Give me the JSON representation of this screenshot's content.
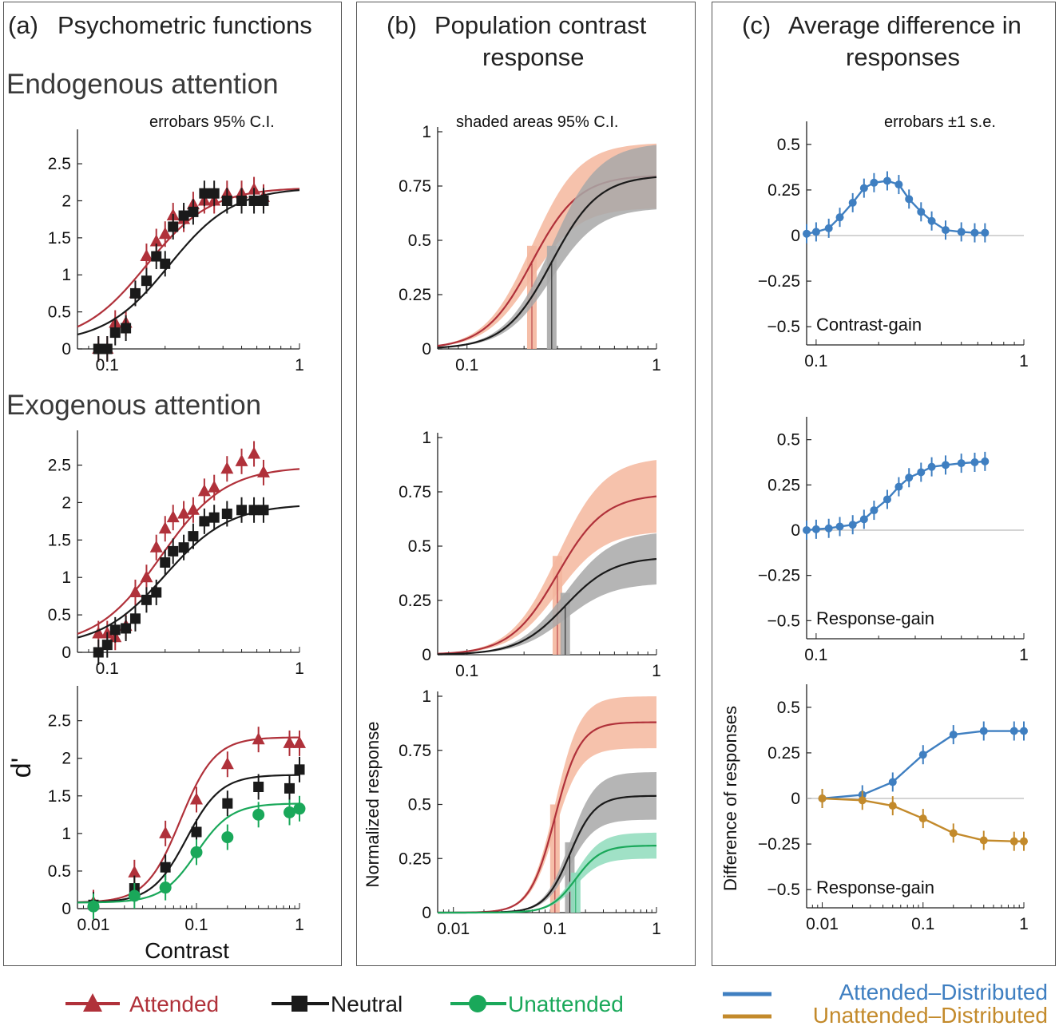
{
  "panels": {
    "a": {
      "label": "(a)",
      "title": "Psychometric functions",
      "endo_heading": "Endogenous attention",
      "exo_heading": "Exogenous attention",
      "note": "errobars 95% C.I."
    },
    "b": {
      "label": "(b)",
      "title_line1": "Population contrast",
      "title_line2": "response",
      "note": "shaded areas 95% C.I."
    },
    "c": {
      "label": "(c)",
      "title_line1": "Average difference in",
      "title_line2": "responses",
      "note": "errobars ±1 s.e."
    }
  },
  "legend": {
    "attended": "Attended",
    "neutral": "Neutral",
    "unattended": "Unattended",
    "att_dist": "Attended–Distributed",
    "unatt_dist": "Unattended–Distributed"
  },
  "colors": {
    "attended": "#b0313a",
    "neutral": "#1a1a1a",
    "unattended": "#1aa85a",
    "att_fill": "#f4b79e",
    "neu_fill": "#a8a8a8",
    "unatt_fill": "#8fdcbc",
    "att_dist": "#3f7fc1",
    "unatt_dist": "#c38a2b"
  },
  "chart_data": [
    {
      "id": "a1",
      "type": "line",
      "xscale": "log",
      "xlim": [
        0.07,
        1
      ],
      "ylim": [
        0,
        2.5
      ],
      "xticks": [
        "0.1",
        "1"
      ],
      "yticks": [
        "0",
        "0.5",
        "1",
        "1.5",
        "2",
        "2.5"
      ],
      "series": [
        {
          "name": "Attended",
          "marker": "triangle",
          "x": [
            0.09,
            0.1,
            0.11,
            0.125,
            0.14,
            0.16,
            0.18,
            0.2,
            0.22,
            0.25,
            0.28,
            0.32,
            0.36,
            0.42,
            0.5,
            0.58,
            0.65
          ],
          "y": [
            0,
            0,
            0.35,
            0.35,
            0.75,
            1.25,
            1.45,
            1.55,
            1.8,
            1.75,
            1.95,
            2.0,
            2.0,
            2.1,
            2.1,
            2.15,
            2.05
          ],
          "fit_mid": 0.16,
          "fit_max": 2.1
        },
        {
          "name": "Neutral",
          "marker": "square",
          "x": [
            0.09,
            0.1,
            0.11,
            0.125,
            0.14,
            0.16,
            0.18,
            0.2,
            0.22,
            0.25,
            0.28,
            0.32,
            0.36,
            0.42,
            0.5,
            0.58,
            0.65
          ],
          "y": [
            0,
            0,
            0.22,
            0.28,
            0.75,
            0.92,
            1.25,
            1.15,
            1.65,
            1.8,
            1.85,
            2.1,
            2.1,
            2.0,
            2.0,
            2.0,
            2.0
          ],
          "fit_mid": 0.21,
          "fit_max": 2.1
        }
      ]
    },
    {
      "id": "a2",
      "type": "line",
      "xscale": "log",
      "xlim": [
        0.07,
        1
      ],
      "ylim": [
        0,
        2.5
      ],
      "xticks": [
        "0.1",
        "1"
      ],
      "yticks": [
        "0",
        "0.5",
        "1",
        "1.5",
        "2",
        "2.5"
      ],
      "series": [
        {
          "name": "Attended",
          "marker": "triangle",
          "x": [
            0.09,
            0.1,
            0.11,
            0.125,
            0.14,
            0.16,
            0.18,
            0.2,
            0.22,
            0.25,
            0.28,
            0.32,
            0.36,
            0.42,
            0.5,
            0.58,
            0.65
          ],
          "y": [
            0.25,
            0.25,
            0.2,
            0.35,
            0.8,
            1.0,
            1.4,
            1.65,
            1.8,
            1.85,
            1.9,
            2.15,
            2.2,
            2.45,
            2.55,
            2.65,
            2.4
          ],
          "fit_mid": 0.19,
          "fit_max": 2.4
        },
        {
          "name": "Neutral",
          "marker": "square",
          "x": [
            0.09,
            0.1,
            0.11,
            0.125,
            0.14,
            0.16,
            0.18,
            0.2,
            0.22,
            0.25,
            0.28,
            0.32,
            0.36,
            0.42,
            0.5,
            0.58,
            0.65
          ],
          "y": [
            0,
            0.1,
            0.3,
            0.32,
            0.45,
            0.7,
            0.8,
            1.2,
            1.35,
            1.4,
            1.55,
            1.75,
            1.8,
            1.85,
            1.9,
            1.9,
            1.9
          ],
          "fit_mid": 0.2,
          "fit_max": 1.9
        }
      ]
    },
    {
      "id": "a3",
      "type": "line",
      "xscale": "log",
      "xlim": [
        0.007,
        1
      ],
      "ylim": [
        0,
        2.5
      ],
      "xlabel": "Contrast",
      "ylabel": "d'",
      "xticks": [
        "0.01",
        "0.1",
        "1"
      ],
      "yticks": [
        "0",
        "0.5",
        "1",
        "1.5",
        "2",
        "2.5"
      ],
      "series": [
        {
          "name": "Attended",
          "marker": "triangle",
          "x": [
            0.01,
            0.025,
            0.05,
            0.1,
            0.2,
            0.4,
            0.8,
            1.0
          ],
          "y": [
            0.08,
            0.48,
            1.0,
            1.45,
            1.92,
            2.25,
            2.2,
            2.2
          ],
          "fit_mid": 0.07,
          "fit_max": 2.2
        },
        {
          "name": "Neutral",
          "marker": "square",
          "x": [
            0.01,
            0.025,
            0.05,
            0.1,
            0.2,
            0.4,
            0.8,
            1.0
          ],
          "y": [
            0.05,
            0.27,
            0.55,
            1.02,
            1.4,
            1.62,
            1.6,
            1.85
          ],
          "fit_mid": 0.08,
          "fit_max": 1.7
        },
        {
          "name": "Unattended",
          "marker": "circle",
          "x": [
            0.01,
            0.025,
            0.05,
            0.1,
            0.2,
            0.4,
            0.8,
            1.0
          ],
          "y": [
            0.03,
            0.17,
            0.28,
            0.75,
            0.95,
            1.25,
            1.28,
            1.33
          ],
          "fit_mid": 0.1,
          "fit_max": 1.32
        }
      ]
    },
    {
      "id": "b1",
      "type": "area",
      "xscale": "log",
      "xlim": [
        0.07,
        1
      ],
      "ylim": [
        0,
        1
      ],
      "xticks": [
        "0.1",
        "1"
      ],
      "yticks": [
        "0",
        "0.25",
        "0.5",
        "0.75",
        "1"
      ],
      "series": [
        {
          "name": "Attended",
          "mid": 0.22,
          "max": 0.8,
          "band": 0.15
        },
        {
          "name": "Neutral",
          "mid": 0.28,
          "max": 0.8,
          "band": 0.15
        }
      ]
    },
    {
      "id": "b2",
      "type": "area",
      "xscale": "log",
      "xlim": [
        0.07,
        1
      ],
      "ylim": [
        0,
        1
      ],
      "xticks": [
        "0.1",
        "1"
      ],
      "yticks": [
        "0",
        "0.25",
        "0.5",
        "0.75",
        "1"
      ],
      "series": [
        {
          "name": "Attended",
          "mid": 0.3,
          "max": 0.74,
          "band": 0.17
        },
        {
          "name": "Neutral",
          "mid": 0.33,
          "max": 0.45,
          "band": 0.12
        }
      ]
    },
    {
      "id": "b3",
      "type": "area",
      "xscale": "log",
      "xlim": [
        0.007,
        1
      ],
      "ylim": [
        0,
        1
      ],
      "ylabel": "Normalized response",
      "xticks": [
        "0.01",
        "0.1",
        "1"
      ],
      "yticks": [
        "0",
        "0.25",
        "0.5",
        "0.75",
        "1"
      ],
      "series": [
        {
          "name": "Attended",
          "mid": 0.1,
          "max": 0.88,
          "band": 0.12
        },
        {
          "name": "Neutral",
          "mid": 0.14,
          "max": 0.54,
          "band": 0.11
        },
        {
          "name": "Unattended",
          "mid": 0.16,
          "max": 0.31,
          "band": 0.06
        }
      ]
    },
    {
      "id": "c1",
      "type": "line",
      "xscale": "log",
      "xlim": [
        0.09,
        1
      ],
      "ylim": [
        -0.6,
        0.6
      ],
      "annotation": "Contrast-gain",
      "xticks": [
        "0.1",
        "1"
      ],
      "yticks": [
        "-0.5",
        "-0.25",
        "0",
        "0.25",
        "0.5"
      ],
      "series": [
        {
          "name": "Attended–Distributed",
          "x": [
            0.09,
            0.1,
            0.115,
            0.13,
            0.15,
            0.17,
            0.19,
            0.22,
            0.25,
            0.28,
            0.32,
            0.36,
            0.42,
            0.5,
            0.58,
            0.65
          ],
          "y": [
            0.01,
            0.02,
            0.04,
            0.1,
            0.18,
            0.26,
            0.29,
            0.3,
            0.28,
            0.2,
            0.13,
            0.08,
            0.03,
            0.02,
            0.015,
            0.015
          ]
        }
      ]
    },
    {
      "id": "c2",
      "type": "line",
      "xscale": "log",
      "xlim": [
        0.09,
        1
      ],
      "ylim": [
        -0.6,
        0.6
      ],
      "annotation": "Response-gain",
      "xticks": [
        "0.1",
        "1"
      ],
      "yticks": [
        "-0.5",
        "-0.25",
        "0",
        "0.25",
        "0.5"
      ],
      "series": [
        {
          "name": "Attended–Distributed",
          "x": [
            0.09,
            0.1,
            0.115,
            0.13,
            0.15,
            0.17,
            0.19,
            0.22,
            0.25,
            0.28,
            0.32,
            0.36,
            0.42,
            0.5,
            0.58,
            0.65
          ],
          "y": [
            0.0,
            0.005,
            0.01,
            0.02,
            0.03,
            0.06,
            0.11,
            0.17,
            0.24,
            0.29,
            0.32,
            0.35,
            0.36,
            0.37,
            0.375,
            0.38
          ]
        }
      ]
    },
    {
      "id": "c3",
      "type": "line",
      "xscale": "log",
      "xlim": [
        0.007,
        1
      ],
      "ylim": [
        -0.6,
        0.6
      ],
      "annotation": "Response-gain",
      "ylabel": "Difference of responses",
      "xticks": [
        "0.01",
        "0.1",
        "1"
      ],
      "yticks": [
        "-0.5",
        "-0.25",
        "0",
        "0.25",
        "0.5"
      ],
      "series": [
        {
          "name": "Attended–Distributed",
          "x": [
            0.01,
            0.025,
            0.05,
            0.1,
            0.2,
            0.4,
            0.8,
            1.0
          ],
          "y": [
            0.0,
            0.02,
            0.09,
            0.24,
            0.35,
            0.37,
            0.37,
            0.37
          ]
        },
        {
          "name": "Unattended–Distributed",
          "x": [
            0.01,
            0.025,
            0.05,
            0.1,
            0.2,
            0.4,
            0.8,
            1.0
          ],
          "y": [
            0.0,
            -0.01,
            -0.04,
            -0.11,
            -0.19,
            -0.23,
            -0.235,
            -0.235
          ]
        }
      ]
    }
  ]
}
